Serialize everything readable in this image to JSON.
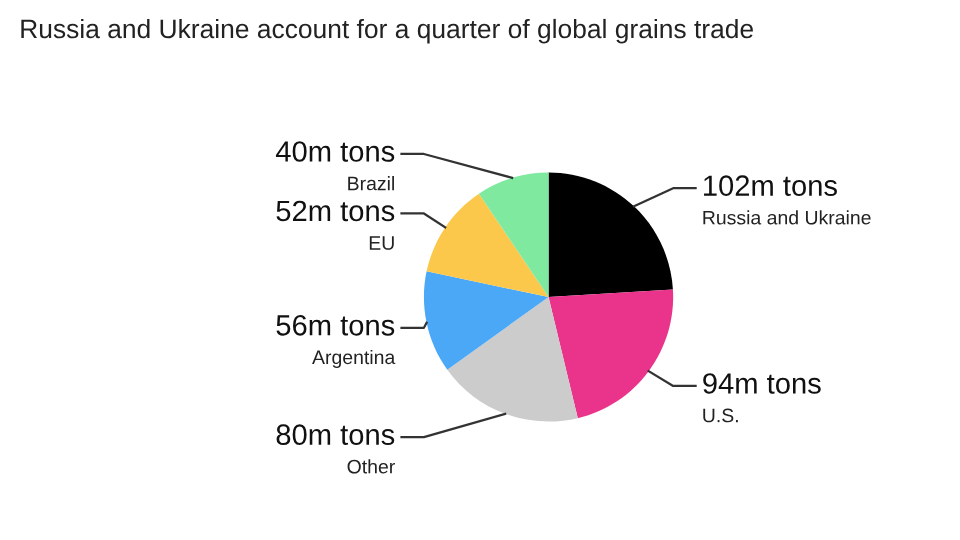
{
  "chart_data": {
    "type": "pie",
    "title": "Russia and Ukraine account for a quarter of global grains trade",
    "categories": [
      "Russia and Ukraine",
      "U.S.",
      "Other",
      "Argentina",
      "EU",
      "Brazil"
    ],
    "values": [
      102,
      94,
      80,
      56,
      52,
      40
    ],
    "value_labels": [
      "102m tons",
      "94m tons",
      "80m tons",
      "56m tons",
      "52m tons",
      "40m tons"
    ],
    "colors": [
      "#000000",
      "#ea338a",
      "#cccccc",
      "#4aa8f7",
      "#fbc84b",
      "#7fe9a0"
    ],
    "legend": false
  }
}
